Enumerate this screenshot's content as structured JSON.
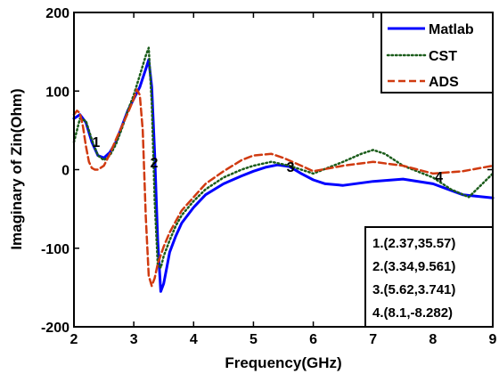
{
  "chart_data": {
    "type": "line",
    "xlabel": "Frequency(GHz)",
    "ylabel": "Imaginary of Zin(Ohm)",
    "xlim": [
      2,
      9
    ],
    "ylim": [
      -200,
      200
    ],
    "xticks": [
      2,
      3,
      4,
      5,
      6,
      7,
      8,
      9
    ],
    "yticks": [
      -200,
      -100,
      0,
      100,
      200
    ],
    "grid": false,
    "legend_position": "top-right",
    "series": [
      {
        "name": "Matlab",
        "color": "#0000ff",
        "style": "solid",
        "x": [
          2.0,
          2.1,
          2.2,
          2.3,
          2.4,
          2.5,
          2.6,
          2.7,
          2.8,
          2.9,
          3.0,
          3.1,
          3.2,
          3.25,
          3.3,
          3.35,
          3.4,
          3.45,
          3.5,
          3.55,
          3.6,
          3.7,
          3.8,
          4.0,
          4.2,
          4.5,
          4.8,
          5.0,
          5.2,
          5.4,
          5.6,
          5.8,
          6.0,
          6.2,
          6.5,
          7.0,
          7.5,
          8.0,
          8.5,
          9.0
        ],
        "y": [
          65,
          70,
          60,
          35,
          18,
          15,
          22,
          35,
          55,
          75,
          90,
          105,
          128,
          140,
          105,
          20,
          -90,
          -155,
          -145,
          -125,
          -105,
          -85,
          -68,
          -48,
          -32,
          -18,
          -8,
          -2,
          3,
          6,
          4,
          -5,
          -13,
          -18,
          -20,
          -15,
          -12,
          -18,
          -32,
          -36
        ]
      },
      {
        "name": "CST",
        "color": "#1a5c1a",
        "style": "dotted",
        "x": [
          2.0,
          2.1,
          2.2,
          2.3,
          2.4,
          2.5,
          2.6,
          2.7,
          2.8,
          2.9,
          3.0,
          3.1,
          3.2,
          3.25,
          3.3,
          3.35,
          3.4,
          3.45,
          3.5,
          3.6,
          3.7,
          3.8,
          4.0,
          4.2,
          4.5,
          4.8,
          5.0,
          5.3,
          5.6,
          6.0,
          6.5,
          6.8,
          7.0,
          7.2,
          7.5,
          8.0,
          8.3,
          8.6,
          9.0
        ],
        "y": [
          35,
          65,
          62,
          38,
          18,
          12,
          18,
          32,
          52,
          75,
          95,
          120,
          145,
          155,
          85,
          -40,
          -120,
          -125,
          -110,
          -90,
          -72,
          -58,
          -40,
          -25,
          -10,
          0,
          5,
          10,
          5,
          -5,
          10,
          20,
          25,
          20,
          5,
          -10,
          -25,
          -35,
          -5
        ]
      },
      {
        "name": "ADS",
        "color": "#d03a10",
        "style": "dashed",
        "x": [
          2.0,
          2.05,
          2.1,
          2.15,
          2.2,
          2.25,
          2.3,
          2.35,
          2.4,
          2.5,
          2.6,
          2.7,
          2.8,
          2.9,
          3.0,
          3.05,
          3.1,
          3.15,
          3.2,
          3.25,
          3.3,
          3.35,
          3.4,
          3.5,
          3.6,
          3.7,
          3.8,
          4.0,
          4.2,
          4.5,
          4.8,
          5.0,
          5.3,
          5.5,
          5.8,
          6.0,
          6.5,
          7.0,
          7.5,
          8.0,
          8.5,
          9.0
        ],
        "y": [
          70,
          75,
          72,
          55,
          30,
          10,
          2,
          0,
          0,
          5,
          20,
          38,
          55,
          72,
          90,
          102,
          95,
          50,
          -60,
          -135,
          -148,
          -138,
          -120,
          -98,
          -80,
          -66,
          -52,
          -35,
          -18,
          -2,
          12,
          18,
          20,
          15,
          5,
          -2,
          5,
          10,
          5,
          -5,
          -2,
          5
        ]
      }
    ],
    "markers": [
      {
        "label": "1",
        "x": 2.37,
        "y": 35.57
      },
      {
        "label": "2",
        "x": 3.34,
        "y": 9.561
      },
      {
        "label": "3",
        "x": 5.62,
        "y": 3.741
      },
      {
        "label": "4",
        "x": 8.1,
        "y": -8.282
      }
    ],
    "annotations": [
      "1.(2.37,35.57)",
      "2.(3.34,9.561)",
      "3.(5.62,3.741)",
      "4.(8.1,-8.282)"
    ]
  }
}
